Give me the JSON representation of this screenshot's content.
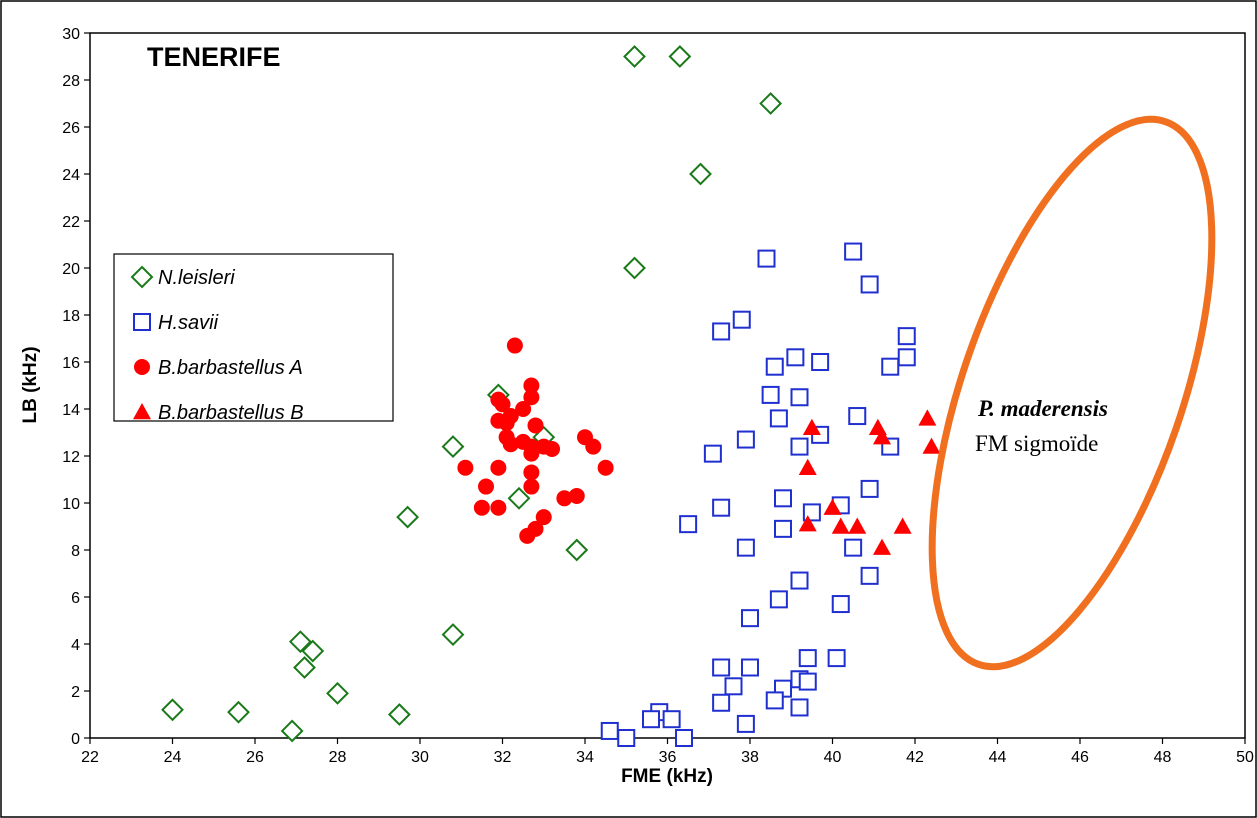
{
  "chart_data": {
    "type": "scatter",
    "title": "TENERIFE",
    "xlabel": "FME (kHz)",
    "ylabel": "LB (kHz)",
    "xlim": [
      22,
      50
    ],
    "ylim": [
      0,
      30
    ],
    "x_ticks": [
      "22",
      "24",
      "26",
      "28",
      "30",
      "32",
      "34",
      "36",
      "38",
      "40",
      "42",
      "44",
      "46",
      "48",
      "50"
    ],
    "y_ticks": [
      "0",
      "2",
      "4",
      "6",
      "8",
      "10",
      "12",
      "14",
      "16",
      "18",
      "20",
      "22",
      "24",
      "26",
      "28",
      "30"
    ],
    "grid": false,
    "legend_position": "left",
    "series": [
      {
        "name": "N.leisleri",
        "marker": "diamond-open",
        "color": "#1a7a1a",
        "points": [
          [
            35.2,
            29.0
          ],
          [
            36.3,
            29.0
          ],
          [
            38.5,
            27.0
          ],
          [
            36.8,
            24.0
          ],
          [
            35.2,
            20.0
          ],
          [
            31.9,
            14.6
          ],
          [
            33.0,
            12.8
          ],
          [
            30.8,
            12.4
          ],
          [
            32.4,
            10.2
          ],
          [
            29.7,
            9.4
          ],
          [
            33.8,
            8.0
          ],
          [
            30.8,
            4.4
          ],
          [
            27.1,
            4.1
          ],
          [
            27.4,
            3.7
          ],
          [
            27.2,
            3.0
          ],
          [
            28.0,
            1.9
          ],
          [
            24.0,
            1.2
          ],
          [
            25.6,
            1.1
          ],
          [
            29.5,
            1.0
          ],
          [
            26.9,
            0.3
          ]
        ]
      },
      {
        "name": "H.savii",
        "marker": "square-open",
        "color": "#1f2fd0",
        "points": [
          [
            40.5,
            20.7
          ],
          [
            38.4,
            20.4
          ],
          [
            40.9,
            19.3
          ],
          [
            37.8,
            17.8
          ],
          [
            37.3,
            17.3
          ],
          [
            41.8,
            17.1
          ],
          [
            41.8,
            16.2
          ],
          [
            39.1,
            16.2
          ],
          [
            39.7,
            16.0
          ],
          [
            38.6,
            15.8
          ],
          [
            41.4,
            15.8
          ],
          [
            38.5,
            14.6
          ],
          [
            39.2,
            14.5
          ],
          [
            40.6,
            13.7
          ],
          [
            38.7,
            13.6
          ],
          [
            39.7,
            12.9
          ],
          [
            37.9,
            12.7
          ],
          [
            39.2,
            12.4
          ],
          [
            41.4,
            12.4
          ],
          [
            37.1,
            12.1
          ],
          [
            40.9,
            10.6
          ],
          [
            38.8,
            10.2
          ],
          [
            40.2,
            9.9
          ],
          [
            37.3,
            9.8
          ],
          [
            39.5,
            9.6
          ],
          [
            36.5,
            9.1
          ],
          [
            38.8,
            8.9
          ],
          [
            40.5,
            8.1
          ],
          [
            37.9,
            8.1
          ],
          [
            40.9,
            6.9
          ],
          [
            39.2,
            6.7
          ],
          [
            38.7,
            5.9
          ],
          [
            40.2,
            5.7
          ],
          [
            38.0,
            5.1
          ],
          [
            39.4,
            3.4
          ],
          [
            40.1,
            3.4
          ],
          [
            37.3,
            3.0
          ],
          [
            38.0,
            3.0
          ],
          [
            39.2,
            2.5
          ],
          [
            39.4,
            2.4
          ],
          [
            37.6,
            2.2
          ],
          [
            38.8,
            2.1
          ],
          [
            38.6,
            1.6
          ],
          [
            37.3,
            1.5
          ],
          [
            39.2,
            1.3
          ],
          [
            35.8,
            1.1
          ],
          [
            36.1,
            0.8
          ],
          [
            35.6,
            0.8
          ],
          [
            37.9,
            0.6
          ],
          [
            34.6,
            0.3
          ],
          [
            35.0,
            0.0
          ],
          [
            36.4,
            0.0
          ]
        ]
      },
      {
        "name": "B.barbastellus A",
        "marker": "circle-filled",
        "color": "#ff0000",
        "points": [
          [
            32.3,
            16.7
          ],
          [
            32.7,
            15.0
          ],
          [
            32.7,
            14.5
          ],
          [
            31.9,
            14.4
          ],
          [
            32.0,
            14.2
          ],
          [
            32.2,
            13.7
          ],
          [
            31.9,
            13.5
          ],
          [
            32.1,
            13.4
          ],
          [
            32.5,
            14.0
          ],
          [
            32.8,
            13.3
          ],
          [
            32.5,
            12.6
          ],
          [
            32.1,
            12.8
          ],
          [
            32.2,
            12.5
          ],
          [
            32.7,
            12.4
          ],
          [
            33.0,
            12.4
          ],
          [
            33.2,
            12.3
          ],
          [
            34.0,
            12.8
          ],
          [
            34.2,
            12.4
          ],
          [
            32.7,
            12.1
          ],
          [
            31.9,
            11.5
          ],
          [
            32.7,
            11.3
          ],
          [
            31.1,
            11.5
          ],
          [
            34.5,
            11.5
          ],
          [
            31.6,
            10.7
          ],
          [
            32.7,
            10.7
          ],
          [
            33.5,
            10.2
          ],
          [
            33.8,
            10.3
          ],
          [
            31.5,
            9.8
          ],
          [
            31.9,
            9.8
          ],
          [
            33.0,
            9.4
          ],
          [
            32.8,
            8.9
          ],
          [
            32.6,
            8.6
          ]
        ]
      },
      {
        "name": "B.barbastellus B",
        "marker": "triangle-filled",
        "color": "#ff0000",
        "points": [
          [
            42.3,
            13.6
          ],
          [
            39.5,
            13.2
          ],
          [
            41.1,
            13.2
          ],
          [
            41.2,
            12.8
          ],
          [
            42.4,
            12.4
          ],
          [
            39.4,
            11.5
          ],
          [
            40.0,
            9.8
          ],
          [
            39.4,
            9.1
          ],
          [
            40.2,
            9.0
          ],
          [
            40.6,
            9.0
          ],
          [
            41.7,
            9.0
          ],
          [
            41.2,
            8.1
          ]
        ]
      }
    ],
    "annotation": {
      "shape": "ellipse",
      "color": "#f07020",
      "line1": "P. maderensis",
      "line2": "FM sigmoïde"
    }
  }
}
